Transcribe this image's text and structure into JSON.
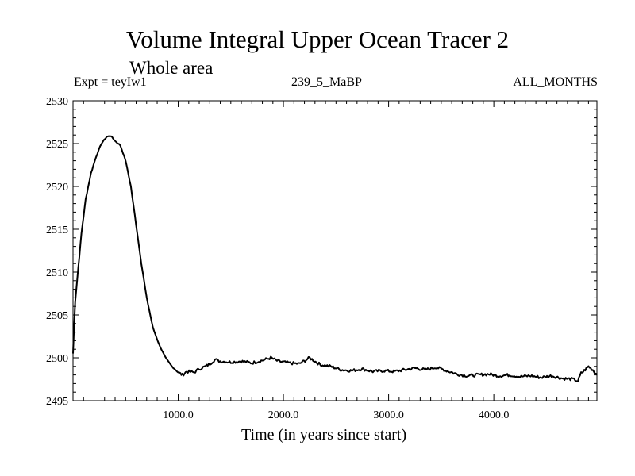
{
  "header": {
    "title": "Volume Integral Upper Ocean Tracer 2",
    "subtitle": "Whole area",
    "expt_label": "Expt = teyIw1",
    "center_label": "239_5_MaBP",
    "right_label": "ALL_MONTHS"
  },
  "colors": {
    "line": "#000000",
    "axes": "#000000",
    "background": "#ffffff"
  },
  "chart_data": {
    "type": "line",
    "title": "Volume Integral Upper Ocean Tracer 2",
    "subtitle": "Whole area",
    "xlabel": "Time (in years since start)",
    "ylabel": "",
    "xlim": [
      0,
      4980
    ],
    "ylim": [
      2495,
      2530
    ],
    "x_ticks": [
      1000,
      2000,
      3000,
      4000
    ],
    "x_tick_labels": [
      "1000.0",
      "2000.0",
      "3000.0",
      "4000.0"
    ],
    "y_ticks": [
      2495,
      2500,
      2505,
      2510,
      2515,
      2520,
      2525,
      2530
    ],
    "y_tick_labels": [
      "2495",
      "2500",
      "2505",
      "2510",
      "2515",
      "2520",
      "2525",
      "2530"
    ],
    "grid": false,
    "series": [
      {
        "name": "Volume Integral Upper Ocean Tracer 2",
        "x": [
          0,
          20,
          50,
          80,
          120,
          170,
          220,
          270,
          320,
          360,
          400,
          450,
          500,
          550,
          600,
          650,
          700,
          760,
          820,
          880,
          940,
          1000,
          1040,
          1080,
          1150,
          1200,
          1260,
          1300,
          1350,
          1400,
          1500,
          1600,
          1700,
          1800,
          1880,
          1950,
          2050,
          2150,
          2250,
          2350,
          2450,
          2550,
          2650,
          2750,
          2850,
          2950,
          3050,
          3150,
          3250,
          3350,
          3450,
          3550,
          3650,
          3750,
          3850,
          3950,
          4050,
          4150,
          4250,
          4350,
          4450,
          4550,
          4650,
          4750,
          4800,
          4830,
          4860,
          4900,
          4940,
          4980
        ],
        "values": [
          2500.5,
          2506.5,
          2510.5,
          2514.5,
          2518.5,
          2521.5,
          2523.5,
          2525.0,
          2525.8,
          2525.9,
          2525.3,
          2524.8,
          2523.0,
          2520.0,
          2515.5,
          2511.0,
          2507.0,
          2503.5,
          2501.5,
          2500.0,
          2499.0,
          2498.3,
          2498.0,
          2498.4,
          2498.3,
          2498.7,
          2499.0,
          2499.3,
          2499.8,
          2499.6,
          2499.5,
          2499.6,
          2499.4,
          2499.7,
          2500.0,
          2499.6,
          2499.4,
          2499.3,
          2500.0,
          2499.2,
          2499.0,
          2498.6,
          2498.5,
          2498.7,
          2498.4,
          2498.5,
          2498.4,
          2498.6,
          2498.8,
          2498.6,
          2498.9,
          2498.5,
          2498.1,
          2497.9,
          2498.0,
          2498.1,
          2497.9,
          2498.0,
          2497.8,
          2497.9,
          2497.7,
          2497.9,
          2497.6,
          2497.5,
          2497.3,
          2498.2,
          2498.5,
          2499.0,
          2498.6,
          2498.0
        ]
      }
    ]
  }
}
